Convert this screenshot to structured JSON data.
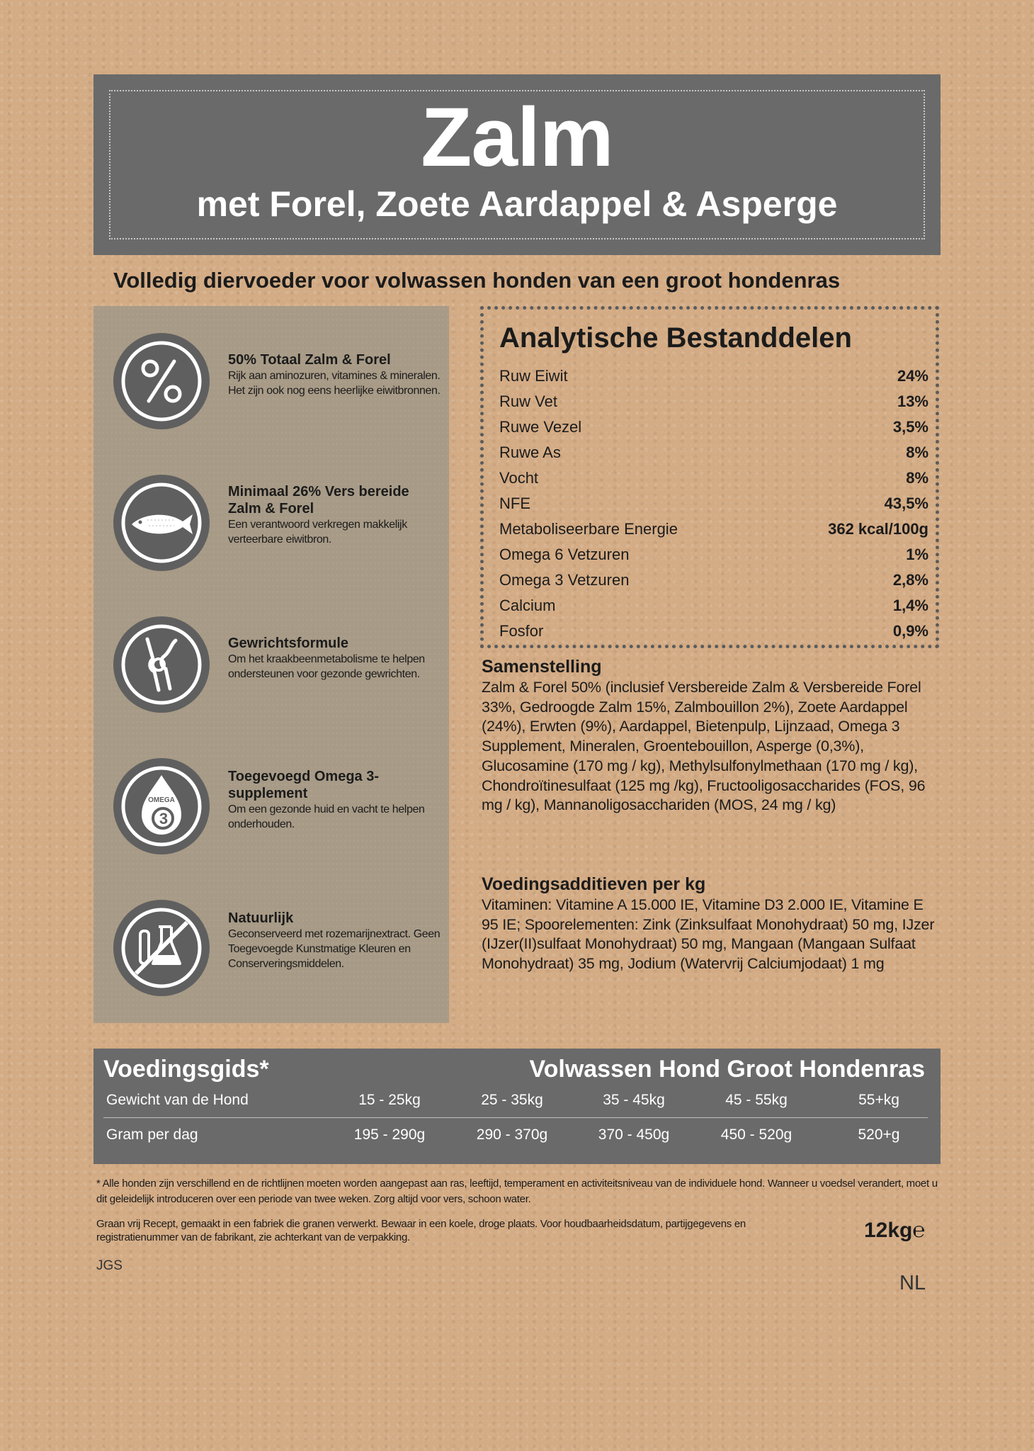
{
  "header": {
    "title": "Zalm",
    "subtitle": "met Forel, Zoete Aardappel & Asperge"
  },
  "tagline": "Volledig diervoeder voor volwassen honden van een groot hondenras",
  "features": [
    {
      "icon": "percent-icon",
      "title": "50% Totaal Zalm & Forel",
      "desc": "Rijk aan aminozuren, vitamines & mineralen. Het zijn ook nog eens heerlijke eiwitbronnen."
    },
    {
      "icon": "fish-icon",
      "title": "Minimaal 26% Vers bereide Zalm & Forel",
      "desc": "Een verantwoord verkregen makkelijk verteerbare eiwitbron."
    },
    {
      "icon": "joint-icon",
      "title": "Gewrichtsformule",
      "desc": "Om het kraakbeenmetabolisme te helpen ondersteunen voor gezonde gewrichten."
    },
    {
      "icon": "omega3-drop-icon",
      "title": "Toegevoegd Omega 3-supplement",
      "desc": "Om een gezonde huid en vacht te helpen onderhouden.",
      "icon_label": "OMEGA"
    },
    {
      "icon": "no-chemicals-icon",
      "title": "Natuurlijk",
      "desc": "Geconserveerd met rozemarijnextract. Geen Toegevoegde Kunstmatige Kleuren en Conserveringsmiddelen."
    }
  ],
  "analysis": {
    "title": "Analytische Bestanddelen",
    "rows": [
      {
        "label": "Ruw Eiwit",
        "value": "24%"
      },
      {
        "label": "Ruw Vet",
        "value": "13%"
      },
      {
        "label": "Ruwe Vezel",
        "value": "3,5%"
      },
      {
        "label": "Ruwe As",
        "value": "8%"
      },
      {
        "label": "Vocht",
        "value": "8%"
      },
      {
        "label": "NFE",
        "value": "43,5%"
      },
      {
        "label": "Metaboliseerbare Energie",
        "value": "362 kcal/100g"
      },
      {
        "label": "Omega 6 Vetzuren",
        "value": "1%"
      },
      {
        "label": "Omega 3 Vetzuren",
        "value": "2,8%"
      },
      {
        "label": "Calcium",
        "value": "1,4%"
      },
      {
        "label": "Fosfor",
        "value": "0,9%"
      }
    ]
  },
  "composition": {
    "title": "Samenstelling",
    "text": "Zalm & Forel 50% (inclusief Versbereide Zalm & Versbereide Forel 33%, Gedroogde Zalm 15%, Zalmbouillon 2%), Zoete Aardappel (24%), Erwten (9%), Aardappel, Bietenpulp, Lijnzaad, Omega 3 Supplement, Mineralen, Groentebouillon, Asperge (0,3%), Glucosamine (170 mg / kg), Methylsulfonylmethaan (170 mg / kg), Chondroïtinesulfaat (125 mg /kg), Fructooligosaccharides (FOS, 96 mg / kg), Mannanoligosacchariden (MOS, 24 mg / kg)"
  },
  "additives": {
    "title": "Voedingsadditieven per kg",
    "text": "Vitaminen: Vitamine A 15.000 IE, Vitamine D3 2.000 IE, Vitamine E 95 IE; Spoorelementen: Zink (Zinksulfaat Monohydraat) 50 mg, IJzer (IJzer(II)sulfaat Monohydraat) 50 mg, Mangaan (Mangaan Sulfaat Monohydraat) 35 mg, Jodium (Watervrij Calciumjodaat) 1 mg"
  },
  "guide": {
    "title": "Voedingsgids*",
    "subtitle": "Volwassen Hond Groot Hondenras",
    "weight_label": "Gewicht van de Hond",
    "grams_label": "Gram per dag",
    "weights": [
      "15 - 25kg",
      "25 - 35kg",
      "35 - 45kg",
      "45 - 55kg",
      "55+kg"
    ],
    "grams": [
      "195 - 290g",
      "290 - 370g",
      "370 - 450g",
      "450 - 520g",
      "520+g"
    ]
  },
  "footnote": "* Alle honden zijn verschillend en de richtlijnen moeten worden aangepast aan ras, leeftijd, temperament en activiteitsniveau van de individuele hond. Wanneer u voedsel verandert, moet u dit geleidelijk introduceren over een periode van twee weken. Zorg altijd voor vers, schoon water.",
  "storage": "Graan vrij Recept, gemaakt in een fabriek die granen verwerkt. Bewaar in een koele, droge plaats. Voor houdbaarheidsdatum, partijgegevens en registratienummer van de fabrikant, zie achterkant van de verpakking.",
  "code": "JGS",
  "weight": "12kg",
  "weight_mark": "℮",
  "language": "NL"
}
